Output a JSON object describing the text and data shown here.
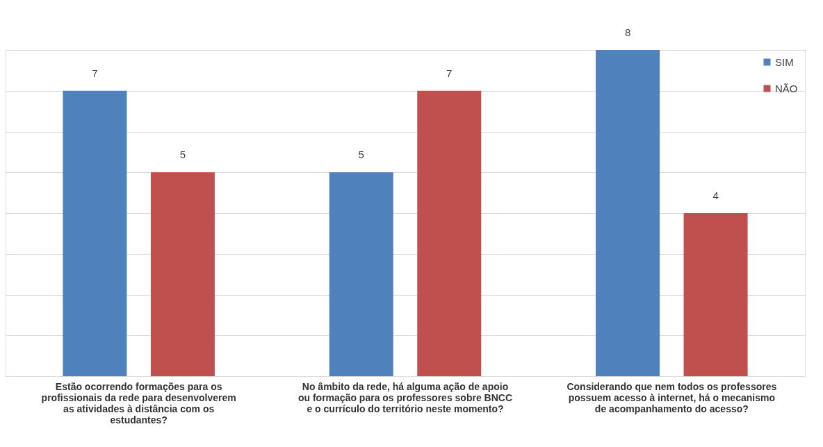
{
  "chart_data": {
    "type": "bar",
    "categories": [
      "Estão ocorrendo formações para os profissionais da rede para desenvolverem as atividades à distância com os estudantes?",
      "No âmbito da rede, há alguma ação de apoio ou formação para os professores sobre BNCC e o currículo do território neste momento?",
      "Considerando que nem todos os professores possuem acesso à internet, há o mecanismo de acompanhamento do acesso?"
    ],
    "series": [
      {
        "name": "SIM",
        "color": "#4f81bd",
        "values": [
          7,
          5,
          8
        ]
      },
      {
        "name": "NÃO",
        "color": "#c0504d",
        "values": [
          5,
          7,
          4
        ]
      }
    ],
    "ylim": [
      0,
      8
    ],
    "yticks": [
      {
        "value": 0,
        "label": null
      },
      {
        "value": 1,
        "label": null
      },
      {
        "value": 2,
        "label": null
      },
      {
        "value": 3,
        "label": null
      },
      {
        "value": 4,
        "label": null
      },
      {
        "value": 5,
        "label": null
      },
      {
        "value": 6,
        "label": null
      },
      {
        "value": 7,
        "label": null
      },
      {
        "value": 8,
        "label": null
      }
    ],
    "tick_labels": "x",
    "grid": "y",
    "legend": "top right",
    "data_labels": true
  }
}
